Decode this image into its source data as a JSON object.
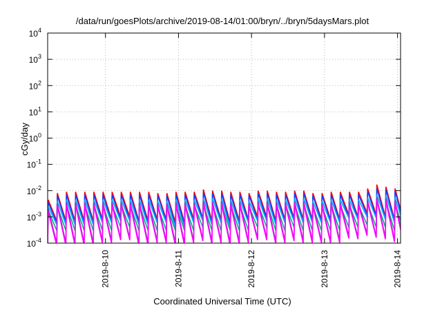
{
  "chart_data": {
    "type": "line",
    "title": "/data/run/goesPlots/archive/2019-08-14/01:00/bryn/../bryn/5daysMars.plot",
    "xlabel": "Coordinated Universal Time (UTC)",
    "ylabel": "cGy/day",
    "yscale": "log",
    "ylim": [
      0.0001,
      10000
    ],
    "yticks": [
      {
        "base": "10",
        "exp": "-4"
      },
      {
        "base": "10",
        "exp": "-3"
      },
      {
        "base": "10",
        "exp": "-2"
      },
      {
        "base": "10",
        "exp": "-1"
      },
      {
        "base": "10",
        "exp": "0"
      },
      {
        "base": "10",
        "exp": "1"
      },
      {
        "base": "10",
        "exp": "2"
      },
      {
        "base": "10",
        "exp": "3"
      },
      {
        "base": "10",
        "exp": "4"
      }
    ],
    "xlim": [
      "2019-08-09 05:00",
      "2019-08-14 01:00"
    ],
    "xticks": [
      {
        "label": "2019-8-10",
        "value": "2019-08-10"
      },
      {
        "label": "2019-8-11",
        "value": "2019-08-11"
      },
      {
        "label": "2019-8-12",
        "value": "2019-08-12"
      },
      {
        "label": "2019-8-13",
        "value": "2019-08-13"
      },
      {
        "label": "2019-8-14",
        "value": "2019-08-14"
      }
    ],
    "grid": true,
    "pattern": "sawtooth",
    "period_hours": 3,
    "series": [
      {
        "color": "#ff0000",
        "lows": [
          0.0008,
          0.0007,
          0.0007,
          0.0007,
          0.0007,
          0.0007,
          0.0008,
          0.0008,
          0.001,
          0.001,
          0.0007,
          0.0007,
          0.0008,
          0.0008,
          0.0006,
          0.0006,
          0.0008,
          0.0009,
          0.0007,
          0.0008,
          0.0006,
          0.0007,
          0.0008,
          0.001,
          0.001,
          0.0007,
          0.0008,
          0.0009,
          0.0008,
          0.0008,
          0.0008,
          0.0008,
          0.0008,
          0.0012,
          0.001,
          0.0014,
          0.0012,
          0.001,
          0.0008,
          0.0007
        ],
        "highs": [
          0.0045,
          0.008,
          0.009,
          0.009,
          0.009,
          0.009,
          0.009,
          0.009,
          0.009,
          0.009,
          0.009,
          0.009,
          0.008,
          0.008,
          0.009,
          0.009,
          0.009,
          0.011,
          0.01,
          0.01,
          0.009,
          0.009,
          0.008,
          0.01,
          0.01,
          0.009,
          0.009,
          0.01,
          0.01,
          0.008,
          0.008,
          0.009,
          0.009,
          0.009,
          0.009,
          0.012,
          0.017,
          0.014,
          0.012,
          0.011
        ]
      },
      {
        "color": "#1040ff",
        "lows": [
          0.0006,
          0.0006,
          0.0006,
          0.0006,
          0.0006,
          0.0006,
          0.0007,
          0.0007,
          0.0008,
          0.0008,
          0.0006,
          0.0006,
          0.0007,
          0.0007,
          0.0005,
          0.0005,
          0.0007,
          0.0008,
          0.0006,
          0.0007,
          0.0005,
          0.0006,
          0.0007,
          0.0008,
          0.0008,
          0.0006,
          0.0007,
          0.0008,
          0.0007,
          0.0007,
          0.0007,
          0.0007,
          0.0007,
          0.001,
          0.0009,
          0.0012,
          0.001,
          0.0009,
          0.0007,
          0.0006
        ],
        "highs": [
          0.0035,
          0.0065,
          0.007,
          0.007,
          0.007,
          0.007,
          0.007,
          0.007,
          0.007,
          0.007,
          0.007,
          0.007,
          0.0065,
          0.0065,
          0.007,
          0.007,
          0.007,
          0.0085,
          0.008,
          0.008,
          0.007,
          0.007,
          0.0065,
          0.008,
          0.008,
          0.007,
          0.007,
          0.008,
          0.008,
          0.0065,
          0.0065,
          0.007,
          0.007,
          0.007,
          0.007,
          0.0095,
          0.012,
          0.011,
          0.0095,
          0.0085
        ]
      },
      {
        "color": "#00aaff",
        "lows": [
          0.0005,
          0.0005,
          0.0005,
          0.0005,
          0.0005,
          0.0005,
          0.0006,
          0.0006,
          0.0007,
          0.0007,
          0.0005,
          0.0005,
          0.0006,
          0.0006,
          0.0004,
          0.0004,
          0.0006,
          0.0007,
          0.0005,
          0.0006,
          0.0004,
          0.0005,
          0.0006,
          0.0007,
          0.0007,
          0.0005,
          0.0006,
          0.0007,
          0.0006,
          0.0006,
          0.0006,
          0.0006,
          0.0006,
          0.0009,
          0.0008,
          0.001,
          0.0009,
          0.0008,
          0.0006,
          0.0005
        ],
        "highs": [
          0.0025,
          0.004,
          0.0045,
          0.0045,
          0.0045,
          0.0045,
          0.0045,
          0.0045,
          0.0045,
          0.0045,
          0.0045,
          0.0045,
          0.004,
          0.004,
          0.0045,
          0.0045,
          0.0045,
          0.005,
          0.005,
          0.005,
          0.0045,
          0.0045,
          0.004,
          0.005,
          0.005,
          0.0045,
          0.0045,
          0.005,
          0.005,
          0.004,
          0.004,
          0.0045,
          0.0045,
          0.0045,
          0.0045,
          0.0055,
          0.007,
          0.0065,
          0.0055,
          0.005
        ]
      },
      {
        "color": "#00b080",
        "lows": [
          0.0003,
          0.0003,
          0.0003,
          0.0003,
          0.0003,
          0.0003,
          0.0003,
          0.0003,
          0.0004,
          0.0004,
          0.0003,
          0.0003,
          0.0003,
          0.0003,
          0.0003,
          0.0003,
          0.0003,
          0.0004,
          0.0003,
          0.0003,
          0.0003,
          0.0003,
          0.0003,
          0.0004,
          0.0004,
          0.0003,
          0.0003,
          0.0004,
          0.0003,
          0.0003,
          0.0003,
          0.0003,
          0.0003,
          0.0004,
          0.0004,
          0.0005,
          0.0004,
          0.0004,
          0.0003,
          0.0003
        ],
        "highs": [
          0.0018,
          0.0025,
          0.0028,
          0.0028,
          0.0028,
          0.0028,
          0.0028,
          0.0028,
          0.0028,
          0.0028,
          0.0028,
          0.0028,
          0.0025,
          0.0025,
          0.0028,
          0.0028,
          0.0028,
          0.003,
          0.003,
          0.003,
          0.0028,
          0.0028,
          0.0025,
          0.003,
          0.003,
          0.0028,
          0.0028,
          0.003,
          0.003,
          0.0025,
          0.0025,
          0.0028,
          0.0028,
          0.0028,
          0.0028,
          0.0032,
          0.004,
          0.0038,
          0.0032,
          0.003
        ]
      },
      {
        "color": "#9933cc",
        "lows": [
          0.00012,
          0.0001,
          0.0001,
          0.0001,
          0.0001,
          0.0001,
          0.00012,
          0.00012,
          0.00015,
          0.00015,
          0.0001,
          0.0001,
          0.00012,
          0.00012,
          0.0001,
          0.0001,
          0.00012,
          0.00014,
          0.00011,
          0.00012,
          0.0001,
          0.00011,
          0.00012,
          0.00015,
          0.00015,
          0.00011,
          0.00012,
          0.00014,
          0.00012,
          0.00012,
          0.00012,
          0.00012,
          0.00012,
          0.00018,
          0.00016,
          0.00022,
          0.00018,
          0.00016,
          0.00013,
          0.00011
        ],
        "highs": [
          0.002,
          0.0032,
          0.0035,
          0.0035,
          0.0035,
          0.0035,
          0.0035,
          0.0035,
          0.0035,
          0.0035,
          0.0035,
          0.0035,
          0.0032,
          0.0032,
          0.0035,
          0.0035,
          0.0035,
          0.004,
          0.0038,
          0.0038,
          0.0035,
          0.0035,
          0.0032,
          0.0038,
          0.0038,
          0.0035,
          0.0035,
          0.0038,
          0.0038,
          0.0032,
          0.0032,
          0.0035,
          0.0035,
          0.0035,
          0.0035,
          0.0042,
          0.0055,
          0.005,
          0.0042,
          0.004
        ]
      },
      {
        "color": "#ff00ff",
        "lows": [
          0.0001,
          8e-05,
          8e-05,
          8e-05,
          8e-05,
          8e-05,
          0.0001,
          0.0001,
          0.00013,
          0.00013,
          8e-05,
          8e-05,
          0.0001,
          0.0001,
          8e-05,
          8e-05,
          0.0001,
          0.00012,
          9e-05,
          0.0001,
          8e-05,
          9e-05,
          0.0001,
          0.00013,
          0.00013,
          9e-05,
          0.0001,
          0.00012,
          0.0001,
          0.0001,
          0.0001,
          0.0001,
          0.0001,
          0.00015,
          0.00014,
          0.00019,
          0.00016,
          0.00014,
          0.00011,
          9e-05
        ],
        "highs": [
          0.0016,
          0.0026,
          0.0028,
          0.0028,
          0.0028,
          0.0028,
          0.0028,
          0.0028,
          0.0028,
          0.0028,
          0.0028,
          0.0028,
          0.0026,
          0.0026,
          0.0028,
          0.0028,
          0.0028,
          0.0032,
          0.003,
          0.003,
          0.0028,
          0.0028,
          0.0026,
          0.003,
          0.003,
          0.0028,
          0.0028,
          0.003,
          0.003,
          0.0026,
          0.0026,
          0.0028,
          0.0028,
          0.0028,
          0.0028,
          0.0034,
          0.0045,
          0.004,
          0.0034,
          0.0032
        ]
      }
    ]
  }
}
